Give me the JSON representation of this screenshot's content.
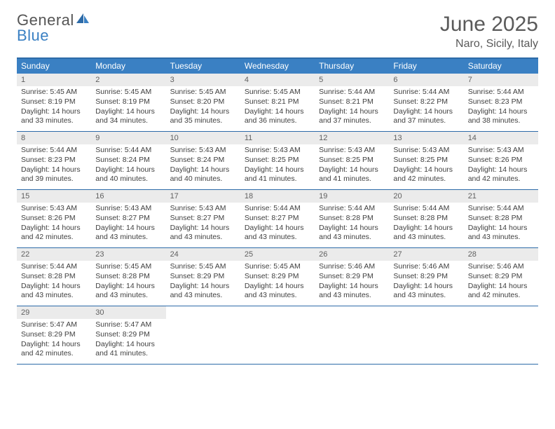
{
  "logo": {
    "general": "General",
    "blue": "Blue"
  },
  "title": "June 2025",
  "location": "Naro, Sicily, Italy",
  "colors": {
    "header_bg": "#3a80c3",
    "border": "#2d6ba8",
    "daynum_bg": "#ebebeb",
    "text": "#404040"
  },
  "dow": [
    "Sunday",
    "Monday",
    "Tuesday",
    "Wednesday",
    "Thursday",
    "Friday",
    "Saturday"
  ],
  "weeks": [
    [
      {
        "n": "1",
        "sr": "Sunrise: 5:45 AM",
        "ss": "Sunset: 8:19 PM",
        "d1": "Daylight: 14 hours",
        "d2": "and 33 minutes."
      },
      {
        "n": "2",
        "sr": "Sunrise: 5:45 AM",
        "ss": "Sunset: 8:19 PM",
        "d1": "Daylight: 14 hours",
        "d2": "and 34 minutes."
      },
      {
        "n": "3",
        "sr": "Sunrise: 5:45 AM",
        "ss": "Sunset: 8:20 PM",
        "d1": "Daylight: 14 hours",
        "d2": "and 35 minutes."
      },
      {
        "n": "4",
        "sr": "Sunrise: 5:45 AM",
        "ss": "Sunset: 8:21 PM",
        "d1": "Daylight: 14 hours",
        "d2": "and 36 minutes."
      },
      {
        "n": "5",
        "sr": "Sunrise: 5:44 AM",
        "ss": "Sunset: 8:21 PM",
        "d1": "Daylight: 14 hours",
        "d2": "and 37 minutes."
      },
      {
        "n": "6",
        "sr": "Sunrise: 5:44 AM",
        "ss": "Sunset: 8:22 PM",
        "d1": "Daylight: 14 hours",
        "d2": "and 37 minutes."
      },
      {
        "n": "7",
        "sr": "Sunrise: 5:44 AM",
        "ss": "Sunset: 8:23 PM",
        "d1": "Daylight: 14 hours",
        "d2": "and 38 minutes."
      }
    ],
    [
      {
        "n": "8",
        "sr": "Sunrise: 5:44 AM",
        "ss": "Sunset: 8:23 PM",
        "d1": "Daylight: 14 hours",
        "d2": "and 39 minutes."
      },
      {
        "n": "9",
        "sr": "Sunrise: 5:44 AM",
        "ss": "Sunset: 8:24 PM",
        "d1": "Daylight: 14 hours",
        "d2": "and 40 minutes."
      },
      {
        "n": "10",
        "sr": "Sunrise: 5:43 AM",
        "ss": "Sunset: 8:24 PM",
        "d1": "Daylight: 14 hours",
        "d2": "and 40 minutes."
      },
      {
        "n": "11",
        "sr": "Sunrise: 5:43 AM",
        "ss": "Sunset: 8:25 PM",
        "d1": "Daylight: 14 hours",
        "d2": "and 41 minutes."
      },
      {
        "n": "12",
        "sr": "Sunrise: 5:43 AM",
        "ss": "Sunset: 8:25 PM",
        "d1": "Daylight: 14 hours",
        "d2": "and 41 minutes."
      },
      {
        "n": "13",
        "sr": "Sunrise: 5:43 AM",
        "ss": "Sunset: 8:25 PM",
        "d1": "Daylight: 14 hours",
        "d2": "and 42 minutes."
      },
      {
        "n": "14",
        "sr": "Sunrise: 5:43 AM",
        "ss": "Sunset: 8:26 PM",
        "d1": "Daylight: 14 hours",
        "d2": "and 42 minutes."
      }
    ],
    [
      {
        "n": "15",
        "sr": "Sunrise: 5:43 AM",
        "ss": "Sunset: 8:26 PM",
        "d1": "Daylight: 14 hours",
        "d2": "and 42 minutes."
      },
      {
        "n": "16",
        "sr": "Sunrise: 5:43 AM",
        "ss": "Sunset: 8:27 PM",
        "d1": "Daylight: 14 hours",
        "d2": "and 43 minutes."
      },
      {
        "n": "17",
        "sr": "Sunrise: 5:43 AM",
        "ss": "Sunset: 8:27 PM",
        "d1": "Daylight: 14 hours",
        "d2": "and 43 minutes."
      },
      {
        "n": "18",
        "sr": "Sunrise: 5:44 AM",
        "ss": "Sunset: 8:27 PM",
        "d1": "Daylight: 14 hours",
        "d2": "and 43 minutes."
      },
      {
        "n": "19",
        "sr": "Sunrise: 5:44 AM",
        "ss": "Sunset: 8:28 PM",
        "d1": "Daylight: 14 hours",
        "d2": "and 43 minutes."
      },
      {
        "n": "20",
        "sr": "Sunrise: 5:44 AM",
        "ss": "Sunset: 8:28 PM",
        "d1": "Daylight: 14 hours",
        "d2": "and 43 minutes."
      },
      {
        "n": "21",
        "sr": "Sunrise: 5:44 AM",
        "ss": "Sunset: 8:28 PM",
        "d1": "Daylight: 14 hours",
        "d2": "and 43 minutes."
      }
    ],
    [
      {
        "n": "22",
        "sr": "Sunrise: 5:44 AM",
        "ss": "Sunset: 8:28 PM",
        "d1": "Daylight: 14 hours",
        "d2": "and 43 minutes."
      },
      {
        "n": "23",
        "sr": "Sunrise: 5:45 AM",
        "ss": "Sunset: 8:28 PM",
        "d1": "Daylight: 14 hours",
        "d2": "and 43 minutes."
      },
      {
        "n": "24",
        "sr": "Sunrise: 5:45 AM",
        "ss": "Sunset: 8:29 PM",
        "d1": "Daylight: 14 hours",
        "d2": "and 43 minutes."
      },
      {
        "n": "25",
        "sr": "Sunrise: 5:45 AM",
        "ss": "Sunset: 8:29 PM",
        "d1": "Daylight: 14 hours",
        "d2": "and 43 minutes."
      },
      {
        "n": "26",
        "sr": "Sunrise: 5:46 AM",
        "ss": "Sunset: 8:29 PM",
        "d1": "Daylight: 14 hours",
        "d2": "and 43 minutes."
      },
      {
        "n": "27",
        "sr": "Sunrise: 5:46 AM",
        "ss": "Sunset: 8:29 PM",
        "d1": "Daylight: 14 hours",
        "d2": "and 43 minutes."
      },
      {
        "n": "28",
        "sr": "Sunrise: 5:46 AM",
        "ss": "Sunset: 8:29 PM",
        "d1": "Daylight: 14 hours",
        "d2": "and 42 minutes."
      }
    ],
    [
      {
        "n": "29",
        "sr": "Sunrise: 5:47 AM",
        "ss": "Sunset: 8:29 PM",
        "d1": "Daylight: 14 hours",
        "d2": "and 42 minutes."
      },
      {
        "n": "30",
        "sr": "Sunrise: 5:47 AM",
        "ss": "Sunset: 8:29 PM",
        "d1": "Daylight: 14 hours",
        "d2": "and 41 minutes."
      },
      null,
      null,
      null,
      null,
      null
    ]
  ]
}
